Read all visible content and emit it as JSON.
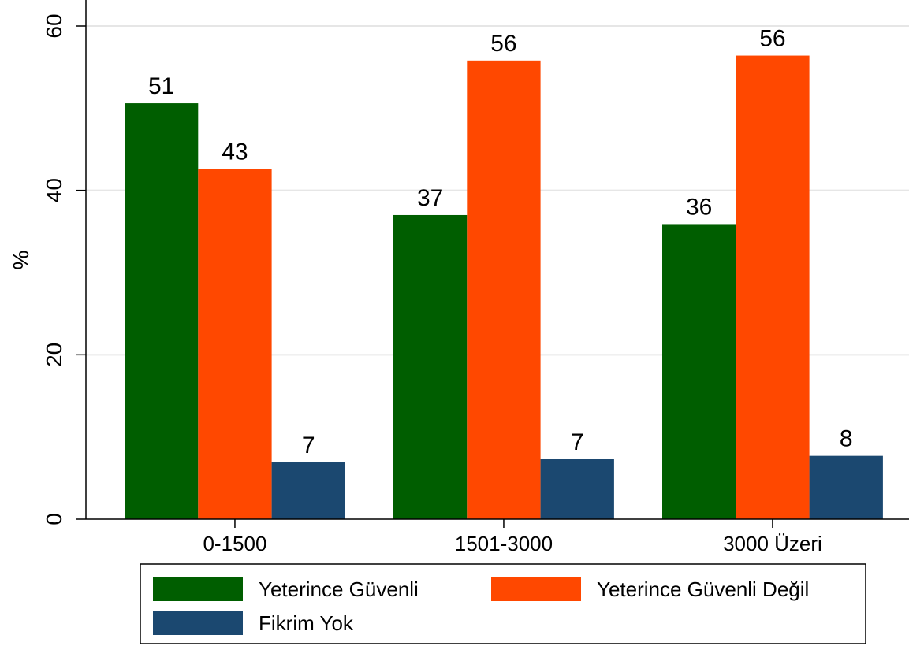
{
  "chart_data": {
    "type": "bar",
    "title": "",
    "xlabel": "",
    "ylabel": "%",
    "ylim": [
      0,
      60
    ],
    "yticks": [
      0,
      20,
      40,
      60
    ],
    "grid": true,
    "legend_position": "bottom",
    "categories": [
      "0-1500",
      "1501-3000",
      "3000 Üzeri"
    ],
    "series": [
      {
        "name": "Yeterince Güvenli",
        "values": [
          50.6,
          37.0,
          35.9
        ],
        "labels": [
          "51",
          "37",
          "36"
        ],
        "color": "#005e00"
      },
      {
        "name": "Yeterince Güvenli Değil",
        "values": [
          42.6,
          55.8,
          56.4
        ],
        "labels": [
          "43",
          "56",
          "56"
        ],
        "color": "#ff4800"
      },
      {
        "name": "Fikrim Yok",
        "values": [
          6.9,
          7.3,
          7.7
        ],
        "labels": [
          "7",
          "7",
          "8"
        ],
        "color": "#1b4870"
      }
    ]
  }
}
